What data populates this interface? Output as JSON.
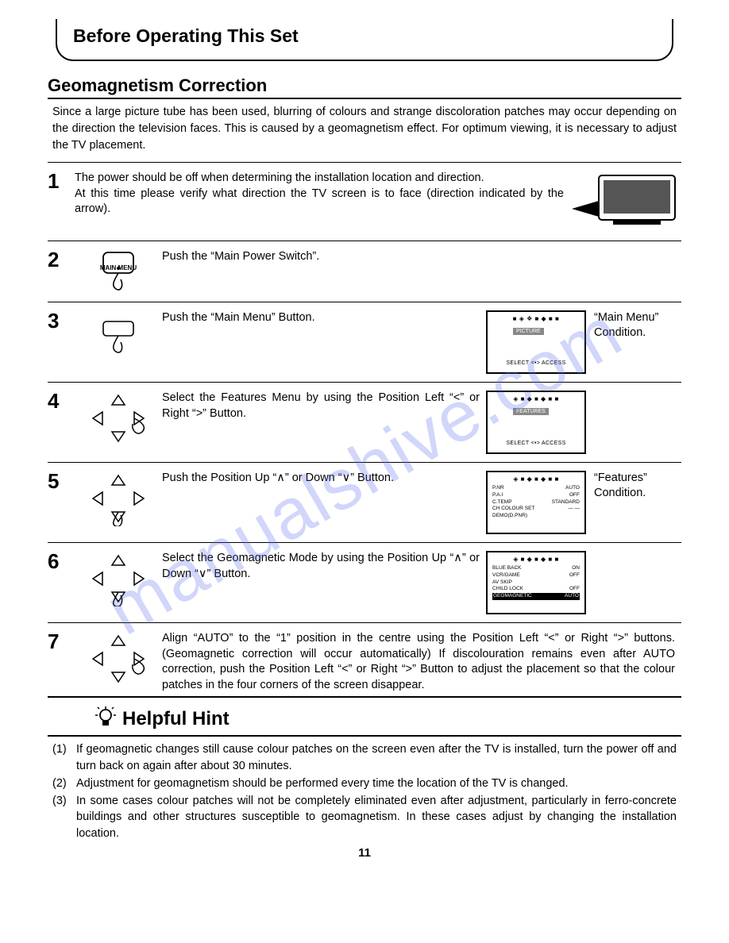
{
  "watermark": "manualshive.com",
  "header": {
    "title": "Before Operating This Set"
  },
  "section": {
    "heading": "Geomagnetism Correction",
    "intro": "Since a large picture tube has been used, blurring of colours and strange discoloration patches may occur depending on the direction the television faces. This is caused by a geomagnetism effect. For optimum viewing, it is necessary to adjust the TV placement."
  },
  "steps": [
    {
      "n": "1",
      "text": "The power should be off when determining the installation location and direction.\nAt this time please verify what direction the TV screen is to face (direction indicated by the arrow).",
      "cond": ""
    },
    {
      "n": "2",
      "text": "Push the “Main Power Switch”.",
      "cond": ""
    },
    {
      "n": "3",
      "text": "Push the “Main Menu” Button.",
      "cond": "“Main Menu” Condition."
    },
    {
      "n": "4",
      "text": "Select the Features Menu by using the Position Left “<” or Right “>” Button.",
      "cond": ""
    },
    {
      "n": "5",
      "text": "Push the Position Up “∧” or Down “∨” Button.",
      "cond": "“Features” Condition."
    },
    {
      "n": "6",
      "text": "Select the Geomagnetic Mode by using the Position Up “∧” or Down “∨” Button.",
      "cond": ""
    },
    {
      "n": "7",
      "text": "Align “AUTO” to the “1” position in the centre using the Position Left “<” or Right “>” buttons. (Geomagnetic correction will occur automatically) If discolouration remains even after AUTO correction, push the Position Left “<” or Right “>” Button to adjust the placement so that the colour patches in the four corners of the screen disappear.",
      "cond": ""
    }
  ],
  "main_menu_label": "MAIN MENU",
  "screen3": {
    "top": "■ ◈ ❖ ■ ◆ ■ ■",
    "label": "PICTURE",
    "bar": "SELECT  <•>  ACCESS"
  },
  "screen4": {
    "top": "◈ ■ ◆ ■ ◆ ■ ■",
    "label": "FEATURES",
    "bar": "SELECT  <•>  ACCESS"
  },
  "screen5": {
    "top": "◈ ■ ◆ ■ ◆ ■ ■",
    "rows": [
      [
        "P.NR",
        "AUTO"
      ],
      [
        "P.A.I",
        "OFF"
      ],
      [
        "C.TEMP",
        "STANDARD"
      ],
      [
        "CH COLOUR SET",
        "— —"
      ],
      [
        "DEMO(D.PNR)",
        ""
      ]
    ]
  },
  "screen6": {
    "top": "◈ ■ ◆ ■ ◆ ■ ■",
    "rows": [
      [
        "BLUE BACK",
        "ON"
      ],
      [
        "VCR/GAME",
        "OFF"
      ],
      [
        "AV SKIP",
        ""
      ],
      [
        "CHILD LOCK",
        "OFF"
      ],
      [
        "GEOMAGNETIC",
        "AUTO"
      ]
    ]
  },
  "hint_heading": "Helpful Hint",
  "hints": [
    {
      "n": "(1)",
      "t": "If geomagnetic changes still cause colour patches on the screen even after the TV is installed, turn the power off and turn back on again after about 30 minutes."
    },
    {
      "n": "(2)",
      "t": "Adjustment for geomagnetism should be performed every time the location of the TV is changed."
    },
    {
      "n": "(3)",
      "t": "In some cases colour patches will not be completely eliminated even after adjustment, particularly in ferro-concrete buildings and other structures susceptible to geomagnetism. In these cases adjust by changing the installation location."
    }
  ],
  "page_number": "11",
  "colors": {
    "text": "#000000",
    "bg": "#ffffff",
    "watermark": "rgba(88,108,236,0.28)"
  },
  "typography": {
    "body_pt": 14.5,
    "h1_pt": 23,
    "h2_pt": 22,
    "stepnum_pt": 26
  }
}
